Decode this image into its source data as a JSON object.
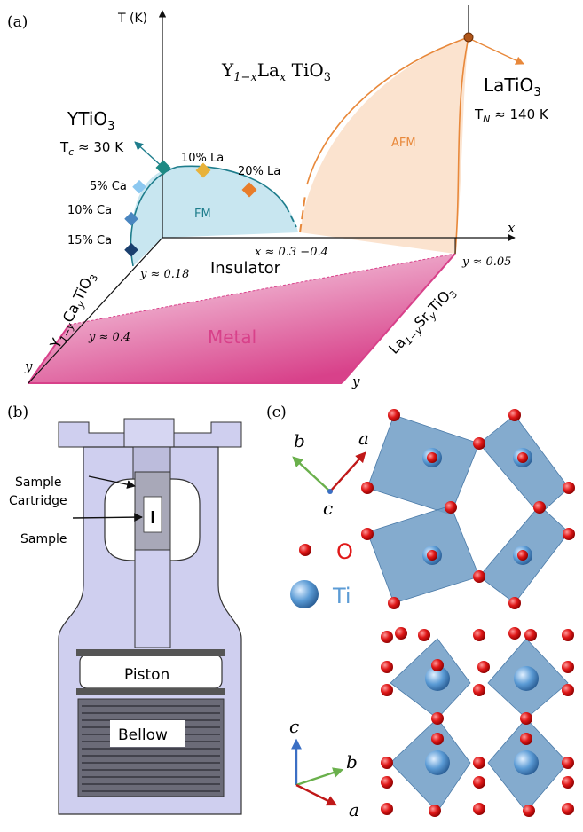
{
  "panels": {
    "a": "(a)",
    "b": "(b)",
    "c": "(c)"
  },
  "phase_diagram": {
    "t_axis": "T (K)",
    "x_axis": "x",
    "y_axis_left": "y",
    "y_axis_right": "y",
    "compound_title": {
      "main": "Y",
      "sub1": "1−x",
      "mid": "La",
      "sub2": "x",
      "tail": " TiO",
      "sub3": "3"
    },
    "ytio3": {
      "main": "YTiO",
      "sub": "3"
    },
    "tc": {
      "main": "T",
      "sub": "c",
      "tail": " ≈ 30 K"
    },
    "latio3": {
      "main": "LaTiO",
      "sub": "3"
    },
    "tn": {
      "main": "T",
      "sub": "N",
      "tail": " ≈ 140 K"
    },
    "ca_labels": [
      "5% Ca",
      "10% Ca",
      "15% Ca"
    ],
    "la_labels": [
      "10% La",
      "20% La"
    ],
    "fm_label": "FM",
    "afm_label": "AFM",
    "insulator_label": "Insulator",
    "metal_label": "Metal",
    "x_range": "x ≈ 0.3 −0.4",
    "y_018": "y ≈ 0.18",
    "y_005": "y ≈ 0.05",
    "y_04": "y ≈ 0.4",
    "left_formula": {
      "a": "Y",
      "s1": "1−y",
      "b": "Ca",
      "s2": "y",
      "c": "TiO",
      "s3": "3"
    },
    "right_formula": {
      "a": "La",
      "s1": "1−y",
      "b": "Sr",
      "s2": "y",
      "c": "TiO",
      "s3": "3"
    },
    "colors": {
      "fm": "#c8e6f0",
      "afm": "#fbe3cf",
      "metal": "#d8418a",
      "teal": "#1e7d8c",
      "orange": "#e8883a"
    }
  },
  "cell": {
    "sample_cartridge": [
      "Sample",
      "Cartridge"
    ],
    "sample": "Sample",
    "piston": "Piston",
    "bellow": "Bellow"
  },
  "structure": {
    "axis_a": "a",
    "axis_b": "b",
    "axis_c": "c",
    "legend_o": "O",
    "legend_ti": "Ti",
    "colors": {
      "o": "#e01818",
      "ti": "#5b9bd5",
      "octa": "#6f9cc6"
    }
  }
}
